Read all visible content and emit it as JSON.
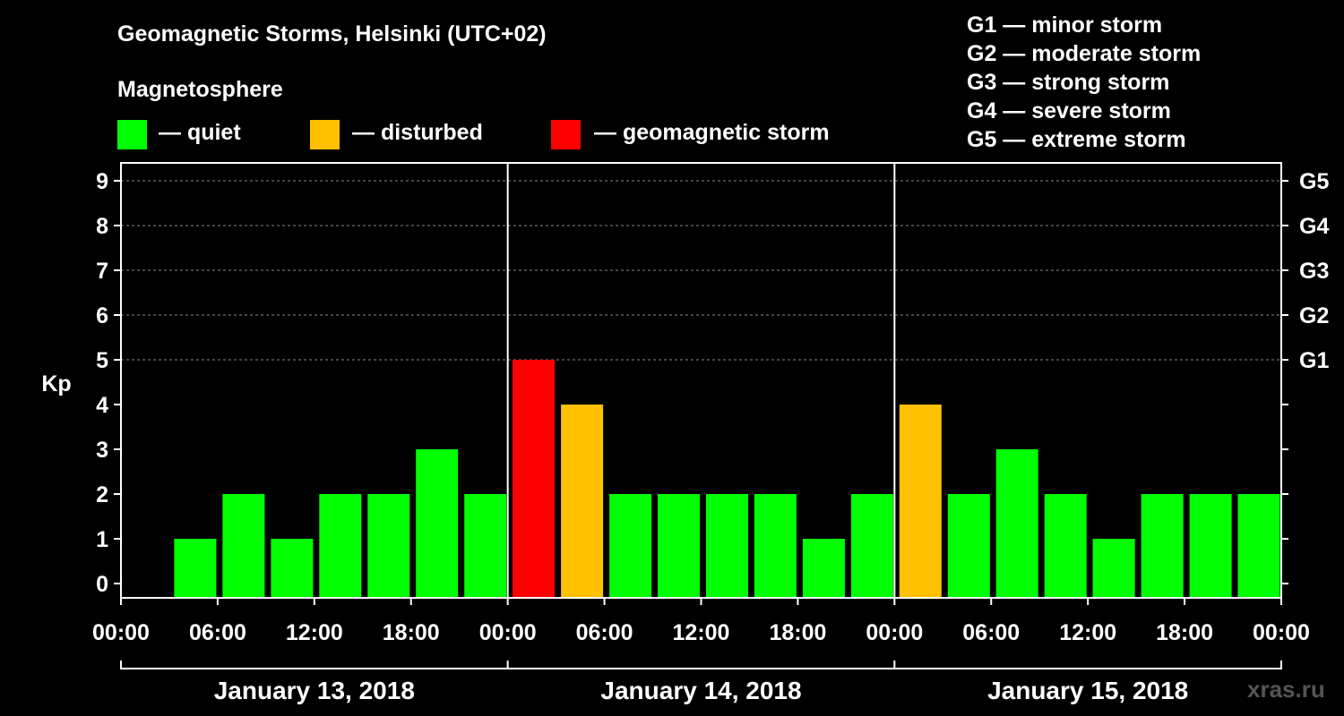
{
  "title": "Geomagnetic Storms, Helsinki (UTC+02)",
  "subtitle": "Magnetosphere",
  "legend": [
    {
      "label": "— quiet",
      "color": "#00ff00"
    },
    {
      "label": "— disturbed",
      "color": "#ffc000"
    },
    {
      "label": "— geomagnetic storm",
      "color": "#ff0000"
    }
  ],
  "g_scale_legend": [
    "G1 — minor storm",
    "G2 — moderate storm",
    "G3 — strong storm",
    "G4 — severe storm",
    "G5 — extreme storm"
  ],
  "source": "xras.ru",
  "chart_data": {
    "type": "bar",
    "ylabel": "Kp",
    "ylim": [
      0,
      9
    ],
    "yticks": [
      "0",
      "1",
      "2",
      "3",
      "4",
      "5",
      "6",
      "7",
      "8",
      "9"
    ],
    "right_axis": [
      {
        "kp": 5,
        "label": "G1"
      },
      {
        "kp": 6,
        "label": "G2"
      },
      {
        "kp": 7,
        "label": "G3"
      },
      {
        "kp": 8,
        "label": "G4"
      },
      {
        "kp": 9,
        "label": "G5"
      }
    ],
    "xticks": [
      "00:00",
      "06:00",
      "12:00",
      "18:00",
      "00:00",
      "06:00",
      "12:00",
      "18:00",
      "00:00",
      "06:00",
      "12:00",
      "18:00",
      "00:00"
    ],
    "days": [
      "January 13, 2018",
      "January 14, 2018",
      "January 15, 2018"
    ],
    "interval_hours": 3,
    "values": [
      0,
      1,
      2,
      1,
      2,
      2,
      3,
      2,
      5,
      4,
      2,
      2,
      2,
      2,
      1,
      2,
      4,
      2,
      3,
      2,
      1,
      2,
      2,
      2
    ],
    "colors": {
      "quiet": "#00ff00",
      "disturbed": "#ffc000",
      "storm": "#ff0000"
    },
    "grid": true
  }
}
